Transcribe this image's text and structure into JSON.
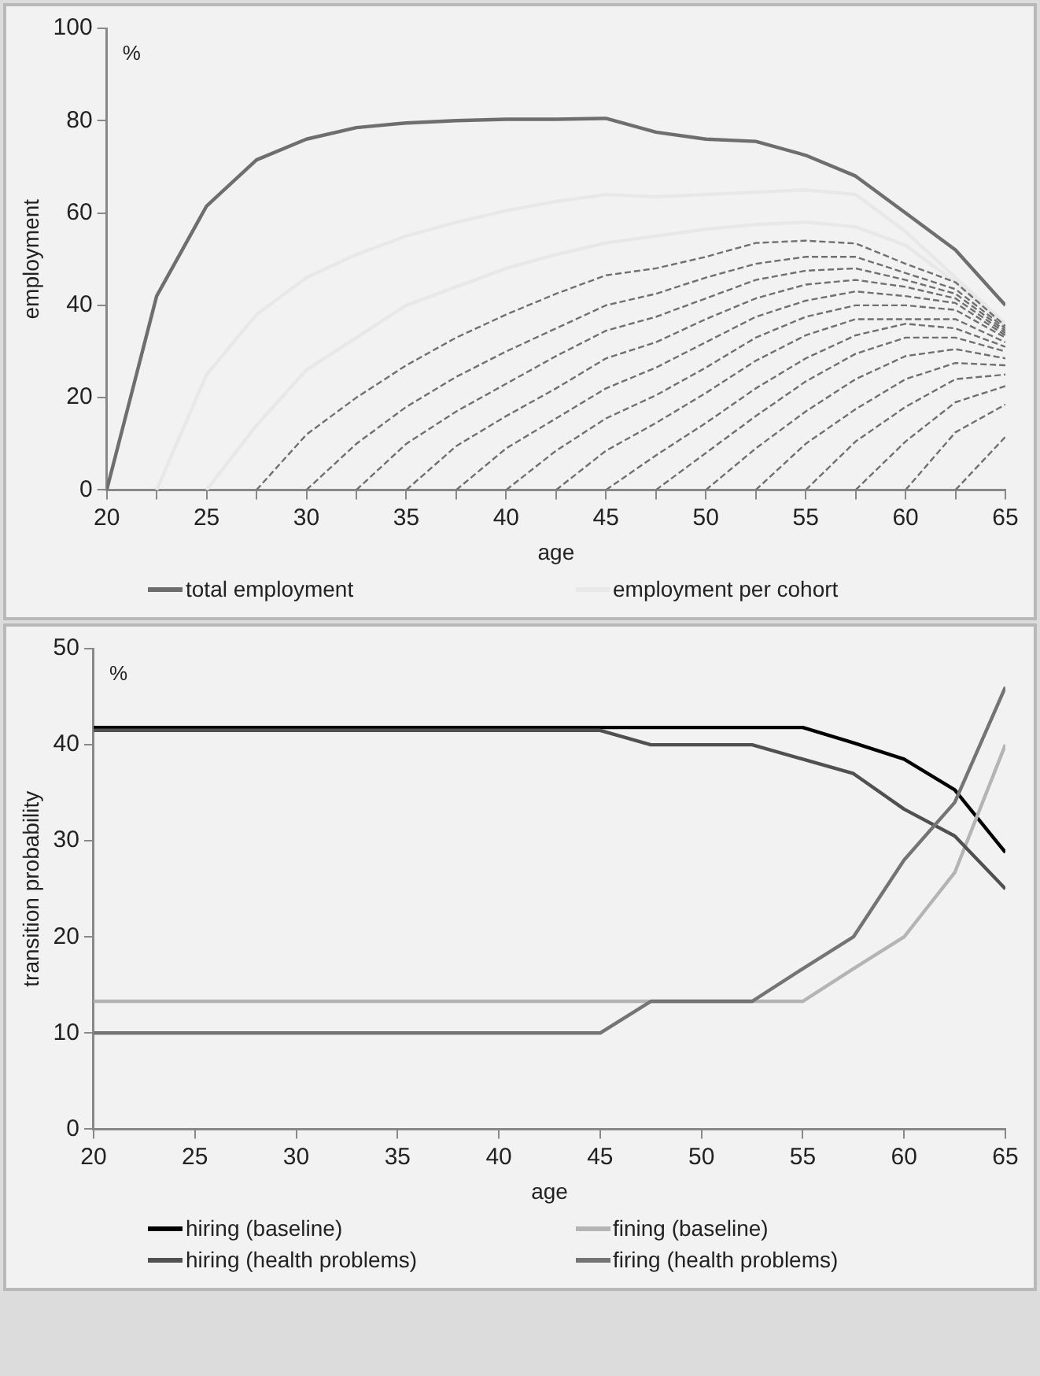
{
  "chart_data": [
    {
      "type": "line",
      "xlabel": "age",
      "ylabel": "employment",
      "annotations": [
        "%"
      ],
      "x": [
        20,
        22.5,
        25,
        27.5,
        30,
        32.5,
        35,
        37.5,
        40,
        42.5,
        45,
        47.5,
        50,
        52.5,
        55,
        57.5,
        60,
        62.5,
        65
      ],
      "xlim": [
        20,
        65
      ],
      "xticks": [
        20,
        {
          "value": 22.5,
          "label": null
        },
        25,
        {
          "value": 27.5,
          "label": null
        },
        30,
        {
          "value": 32.5,
          "label": null
        },
        35,
        {
          "value": 37.5,
          "label": null
        },
        40,
        {
          "value": 42.5,
          "label": null
        },
        45,
        {
          "value": 47.5,
          "label": null
        },
        50,
        {
          "value": 52.5,
          "label": null
        },
        55,
        {
          "value": 57.5,
          "label": null
        },
        60,
        {
          "value": 62.5,
          "label": null
        },
        65
      ],
      "ylim": [
        0,
        100
      ],
      "yticks": [
        0,
        20,
        40,
        60,
        80,
        100
      ],
      "grid": false,
      "legend": "bottom",
      "series": [
        {
          "name": "total employment",
          "color": "#6e6e6e",
          "values": [
            0,
            42,
            61.5,
            71.5,
            76,
            78.5,
            79.5,
            80,
            80.3,
            80.3,
            80.5,
            77.5,
            76,
            75.5,
            72.5,
            68,
            60,
            52,
            40
          ]
        },
        {
          "name": "employment per cohort",
          "color": "#e8e8e8",
          "values": [
            null,
            0,
            25,
            38,
            46,
            51,
            55,
            58,
            60.5,
            62.5,
            64,
            63.5,
            64,
            64.5,
            65,
            64,
            56,
            46,
            36
          ]
        },
        {
          "color": "#e8e8e8",
          "values": [
            null,
            null,
            0,
            14,
            26,
            33,
            40,
            44,
            48,
            51,
            53.5,
            55,
            56.5,
            57.5,
            58,
            57,
            53,
            45,
            35.5
          ]
        },
        {
          "color": "#707070",
          "line_style": "dashed",
          "values": [
            null,
            null,
            null,
            0,
            12,
            20,
            27,
            33,
            38,
            42.5,
            46.5,
            48,
            50.5,
            53.5,
            54,
            53.4,
            49,
            45,
            35.5
          ]
        },
        {
          "color": "#707070",
          "line_style": "dashed",
          "values": [
            null,
            null,
            null,
            null,
            0,
            10,
            18,
            24.5,
            30,
            35,
            40,
            42.5,
            46,
            49,
            50.5,
            50.5,
            47,
            43.5,
            35
          ]
        },
        {
          "color": "#707070",
          "line_style": "dashed",
          "values": [
            null,
            null,
            null,
            null,
            null,
            0,
            10,
            17,
            23,
            29,
            34.5,
            37.5,
            41.5,
            45.5,
            47.5,
            48,
            45.5,
            42.5,
            34.5
          ]
        },
        {
          "color": "#707070",
          "line_style": "dashed",
          "values": [
            null,
            null,
            null,
            null,
            null,
            null,
            0,
            9.5,
            16,
            22,
            28.5,
            32,
            37,
            41.5,
            44.5,
            45.5,
            44,
            41.5,
            34
          ]
        },
        {
          "color": "#707070",
          "line_style": "dashed",
          "values": [
            null,
            null,
            null,
            null,
            null,
            null,
            null,
            0,
            9,
            15.5,
            22,
            26.5,
            32,
            37.5,
            41,
            43,
            42,
            40.5,
            33.5
          ]
        },
        {
          "color": "#707070",
          "line_style": "dashed",
          "values": [
            null,
            null,
            null,
            null,
            null,
            null,
            null,
            null,
            0,
            8.5,
            15.5,
            20.5,
            26.5,
            33,
            37.5,
            40,
            40,
            39,
            33
          ]
        },
        {
          "color": "#707070",
          "line_style": "dashed",
          "values": [
            null,
            null,
            null,
            null,
            null,
            null,
            null,
            null,
            null,
            0,
            8.5,
            14.5,
            21,
            28,
            33.5,
            37,
            37,
            37,
            32
          ]
        },
        {
          "color": "#707070",
          "line_style": "dashed",
          "values": [
            null,
            null,
            null,
            null,
            null,
            null,
            null,
            null,
            null,
            null,
            0,
            7.5,
            14.5,
            22,
            28.5,
            33.5,
            36,
            35,
            31
          ]
        },
        {
          "color": "#707070",
          "line_style": "dashed",
          "values": [
            null,
            null,
            null,
            null,
            null,
            null,
            null,
            null,
            null,
            null,
            null,
            0,
            8,
            16,
            23.5,
            29.5,
            33,
            33,
            30
          ]
        },
        {
          "color": "#707070",
          "line_style": "dashed",
          "values": [
            null,
            null,
            null,
            null,
            null,
            null,
            null,
            null,
            null,
            null,
            null,
            null,
            0,
            9,
            17,
            24,
            29,
            30.5,
            28.5
          ]
        },
        {
          "color": "#707070",
          "line_style": "dashed",
          "values": [
            null,
            null,
            null,
            null,
            null,
            null,
            null,
            null,
            null,
            null,
            null,
            null,
            null,
            0,
            10,
            17.5,
            24,
            27.5,
            27
          ]
        },
        {
          "color": "#707070",
          "line_style": "dashed",
          "values": [
            null,
            null,
            null,
            null,
            null,
            null,
            null,
            null,
            null,
            null,
            null,
            null,
            null,
            null,
            0,
            10.5,
            18,
            24,
            25
          ]
        },
        {
          "color": "#707070",
          "line_style": "dashed",
          "values": [
            null,
            null,
            null,
            null,
            null,
            null,
            null,
            null,
            null,
            null,
            null,
            null,
            null,
            null,
            null,
            0,
            10.5,
            19,
            22.5
          ]
        },
        {
          "color": "#707070",
          "line_style": "dashed",
          "values": [
            null,
            null,
            null,
            null,
            null,
            null,
            null,
            null,
            null,
            null,
            null,
            null,
            null,
            null,
            null,
            null,
            0,
            12.5,
            18.5
          ]
        },
        {
          "color": "#707070",
          "line_style": "dashed",
          "values": [
            null,
            null,
            null,
            null,
            null,
            null,
            null,
            null,
            null,
            null,
            null,
            null,
            null,
            null,
            null,
            null,
            null,
            0,
            11.5
          ]
        }
      ]
    },
    {
      "type": "line",
      "xlabel": "age",
      "ylabel": "transition probability",
      "annotations": [
        "%"
      ],
      "x": [
        20,
        22.5,
        25,
        27.5,
        30,
        32.5,
        35,
        37.5,
        40,
        42.5,
        45,
        47.5,
        50,
        52.5,
        55,
        57.5,
        60,
        62.5,
        65
      ],
      "xlim": [
        20,
        65
      ],
      "xticks": [
        20,
        25,
        30,
        35,
        40,
        45,
        50,
        55,
        60,
        65
      ],
      "ylim": [
        0,
        50
      ],
      "yticks": [
        0,
        10,
        20,
        30,
        40,
        50
      ],
      "grid": false,
      "legend": "bottom",
      "series": [
        {
          "name": "hiring (baseline)",
          "color": "#000000",
          "values": [
            41.8,
            41.8,
            41.8,
            41.8,
            41.8,
            41.8,
            41.8,
            41.8,
            41.8,
            41.8,
            41.8,
            41.8,
            41.8,
            41.8,
            41.8,
            40.2,
            38.5,
            35.3,
            28.8
          ]
        },
        {
          "name": "fining (baseline)",
          "color": "#b4b4b4",
          "values": [
            13.3,
            13.3,
            13.3,
            13.3,
            13.3,
            13.3,
            13.3,
            13.3,
            13.3,
            13.3,
            13.3,
            13.3,
            13.3,
            13.3,
            13.3,
            16.7,
            20,
            26.7,
            40
          ]
        },
        {
          "name": "hiring (health problems)",
          "color": "#505050",
          "values": [
            41.5,
            41.5,
            41.5,
            41.5,
            41.5,
            41.5,
            41.5,
            41.5,
            41.5,
            41.5,
            41.5,
            40,
            40,
            40,
            38.5,
            37,
            33.3,
            30.5,
            25
          ]
        },
        {
          "name": "firing (health problems)",
          "color": "#747474",
          "values": [
            10,
            10,
            10,
            10,
            10,
            10,
            10,
            10,
            10,
            10,
            10,
            13.3,
            13.3,
            13.3,
            16.7,
            20,
            28,
            34,
            46
          ]
        }
      ]
    }
  ]
}
